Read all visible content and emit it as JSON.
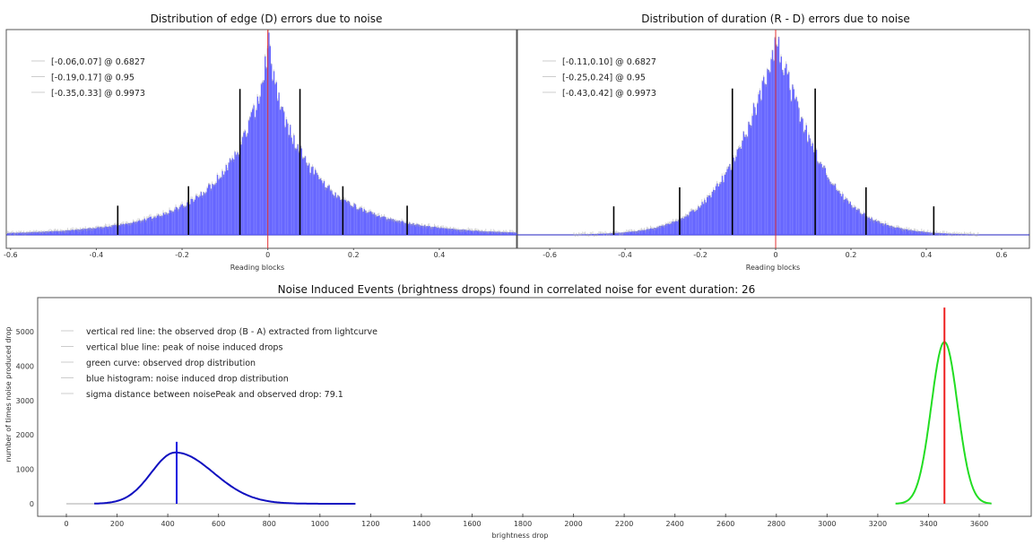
{
  "chart_data": [
    {
      "type": "bar",
      "title": "Distribution of edge (D) errors due to noise",
      "xlabel": "Reading blocks",
      "xlim": [
        -0.61,
        0.58
      ],
      "xticks": [
        "-0.6",
        "-0.4",
        "-0.2",
        "0",
        "0.2",
        "0.4"
      ],
      "xtick_values": [
        -0.6,
        -0.4,
        -0.2,
        0,
        0.2,
        0.4
      ],
      "histogram": {
        "color": "#5555ff",
        "center": 0,
        "scale": 0.09,
        "shape": 0.8
      },
      "center_line": {
        "x": 0,
        "color": "#e03030"
      },
      "legend": [
        "[-0.06,0.07] @ 0.6827",
        "[-0.19,0.17] @ 0.95",
        "[-0.35,0.33] @ 0.9973"
      ],
      "intervals": [
        {
          "lo": -0.065,
          "hi": 0.075,
          "level": 0.6827,
          "rel_height": 0.75
        },
        {
          "lo": -0.185,
          "hi": 0.175,
          "level": 0.95,
          "rel_height": 0.25
        },
        {
          "lo": -0.35,
          "hi": 0.325,
          "level": 0.9973,
          "rel_height": 0.15
        }
      ]
    },
    {
      "type": "bar",
      "title": "Distribution of duration (R - D) errors due to noise",
      "xlabel": "Reading blocks",
      "xlim": [
        -0.686,
        0.674
      ],
      "xticks": [
        "-0.6",
        "-0.4",
        "-0.2",
        "0",
        "0.2",
        "0.4",
        "0.6"
      ],
      "xtick_values": [
        -0.6,
        -0.4,
        -0.2,
        0,
        0.2,
        0.4,
        0.6
      ],
      "histogram": {
        "color": "#5555ff",
        "center": 0,
        "scale": 0.12,
        "shape": 1.2
      },
      "center_line": {
        "x": 0,
        "color": "#e03030"
      },
      "legend": [
        "[-0.11,0.10] @ 0.6827",
        "[-0.25,0.24] @ 0.95",
        "[-0.43,0.42] @ 0.9973"
      ],
      "intervals": [
        {
          "lo": -0.115,
          "hi": 0.105,
          "level": 0.6827,
          "rel_height": 0.77
        },
        {
          "lo": -0.255,
          "hi": 0.24,
          "level": 0.95,
          "rel_height": 0.25
        },
        {
          "lo": -0.43,
          "hi": 0.42,
          "level": 0.9973,
          "rel_height": 0.15
        }
      ]
    },
    {
      "type": "line",
      "title": "Noise Induced Events (brightness drops) found in correlated noise for event duration: 26",
      "xlabel": "brightness drop",
      "ylabel": "number of times noise produced drop",
      "xlim": [
        -115,
        3800
      ],
      "ylim": [
        -330,
        6000
      ],
      "xticks": [
        "0",
        "200",
        "400",
        "600",
        "800",
        "1000",
        "1200",
        "1400",
        "1600",
        "1800",
        "2000",
        "2200",
        "2400",
        "2600",
        "2800",
        "3000",
        "3200",
        "3400",
        "3600"
      ],
      "yticks": [
        "0",
        "1000",
        "2000",
        "3000",
        "4000",
        "5000"
      ],
      "legend": [
        "vertical red line: the observed drop (B - A) extracted from lightcurve",
        "vertical blue line: peak of noise induced drops",
        "green curve: observed drop distribution",
        "blue histogram: noise induced drop distribution",
        "sigma distance between noisePeak and observed drop: 79.1"
      ],
      "noise_distribution": {
        "color": "#1010c0",
        "peak_x": 430,
        "peak_y": 1490,
        "sigma_left": 95,
        "sigma_right": 150,
        "range": [
          110,
          1140
        ]
      },
      "noise_peak_line": {
        "x": 435,
        "top": 1800,
        "color": "#1010e0"
      },
      "observed_distribution": {
        "color": "#22dd22",
        "mean": 3463,
        "peak_y": 4700,
        "sigma": 52,
        "range": [
          3270,
          3650
        ]
      },
      "observed_drop_line": {
        "x": 3463,
        "top": 5700,
        "color": "#ee2020"
      }
    }
  ]
}
